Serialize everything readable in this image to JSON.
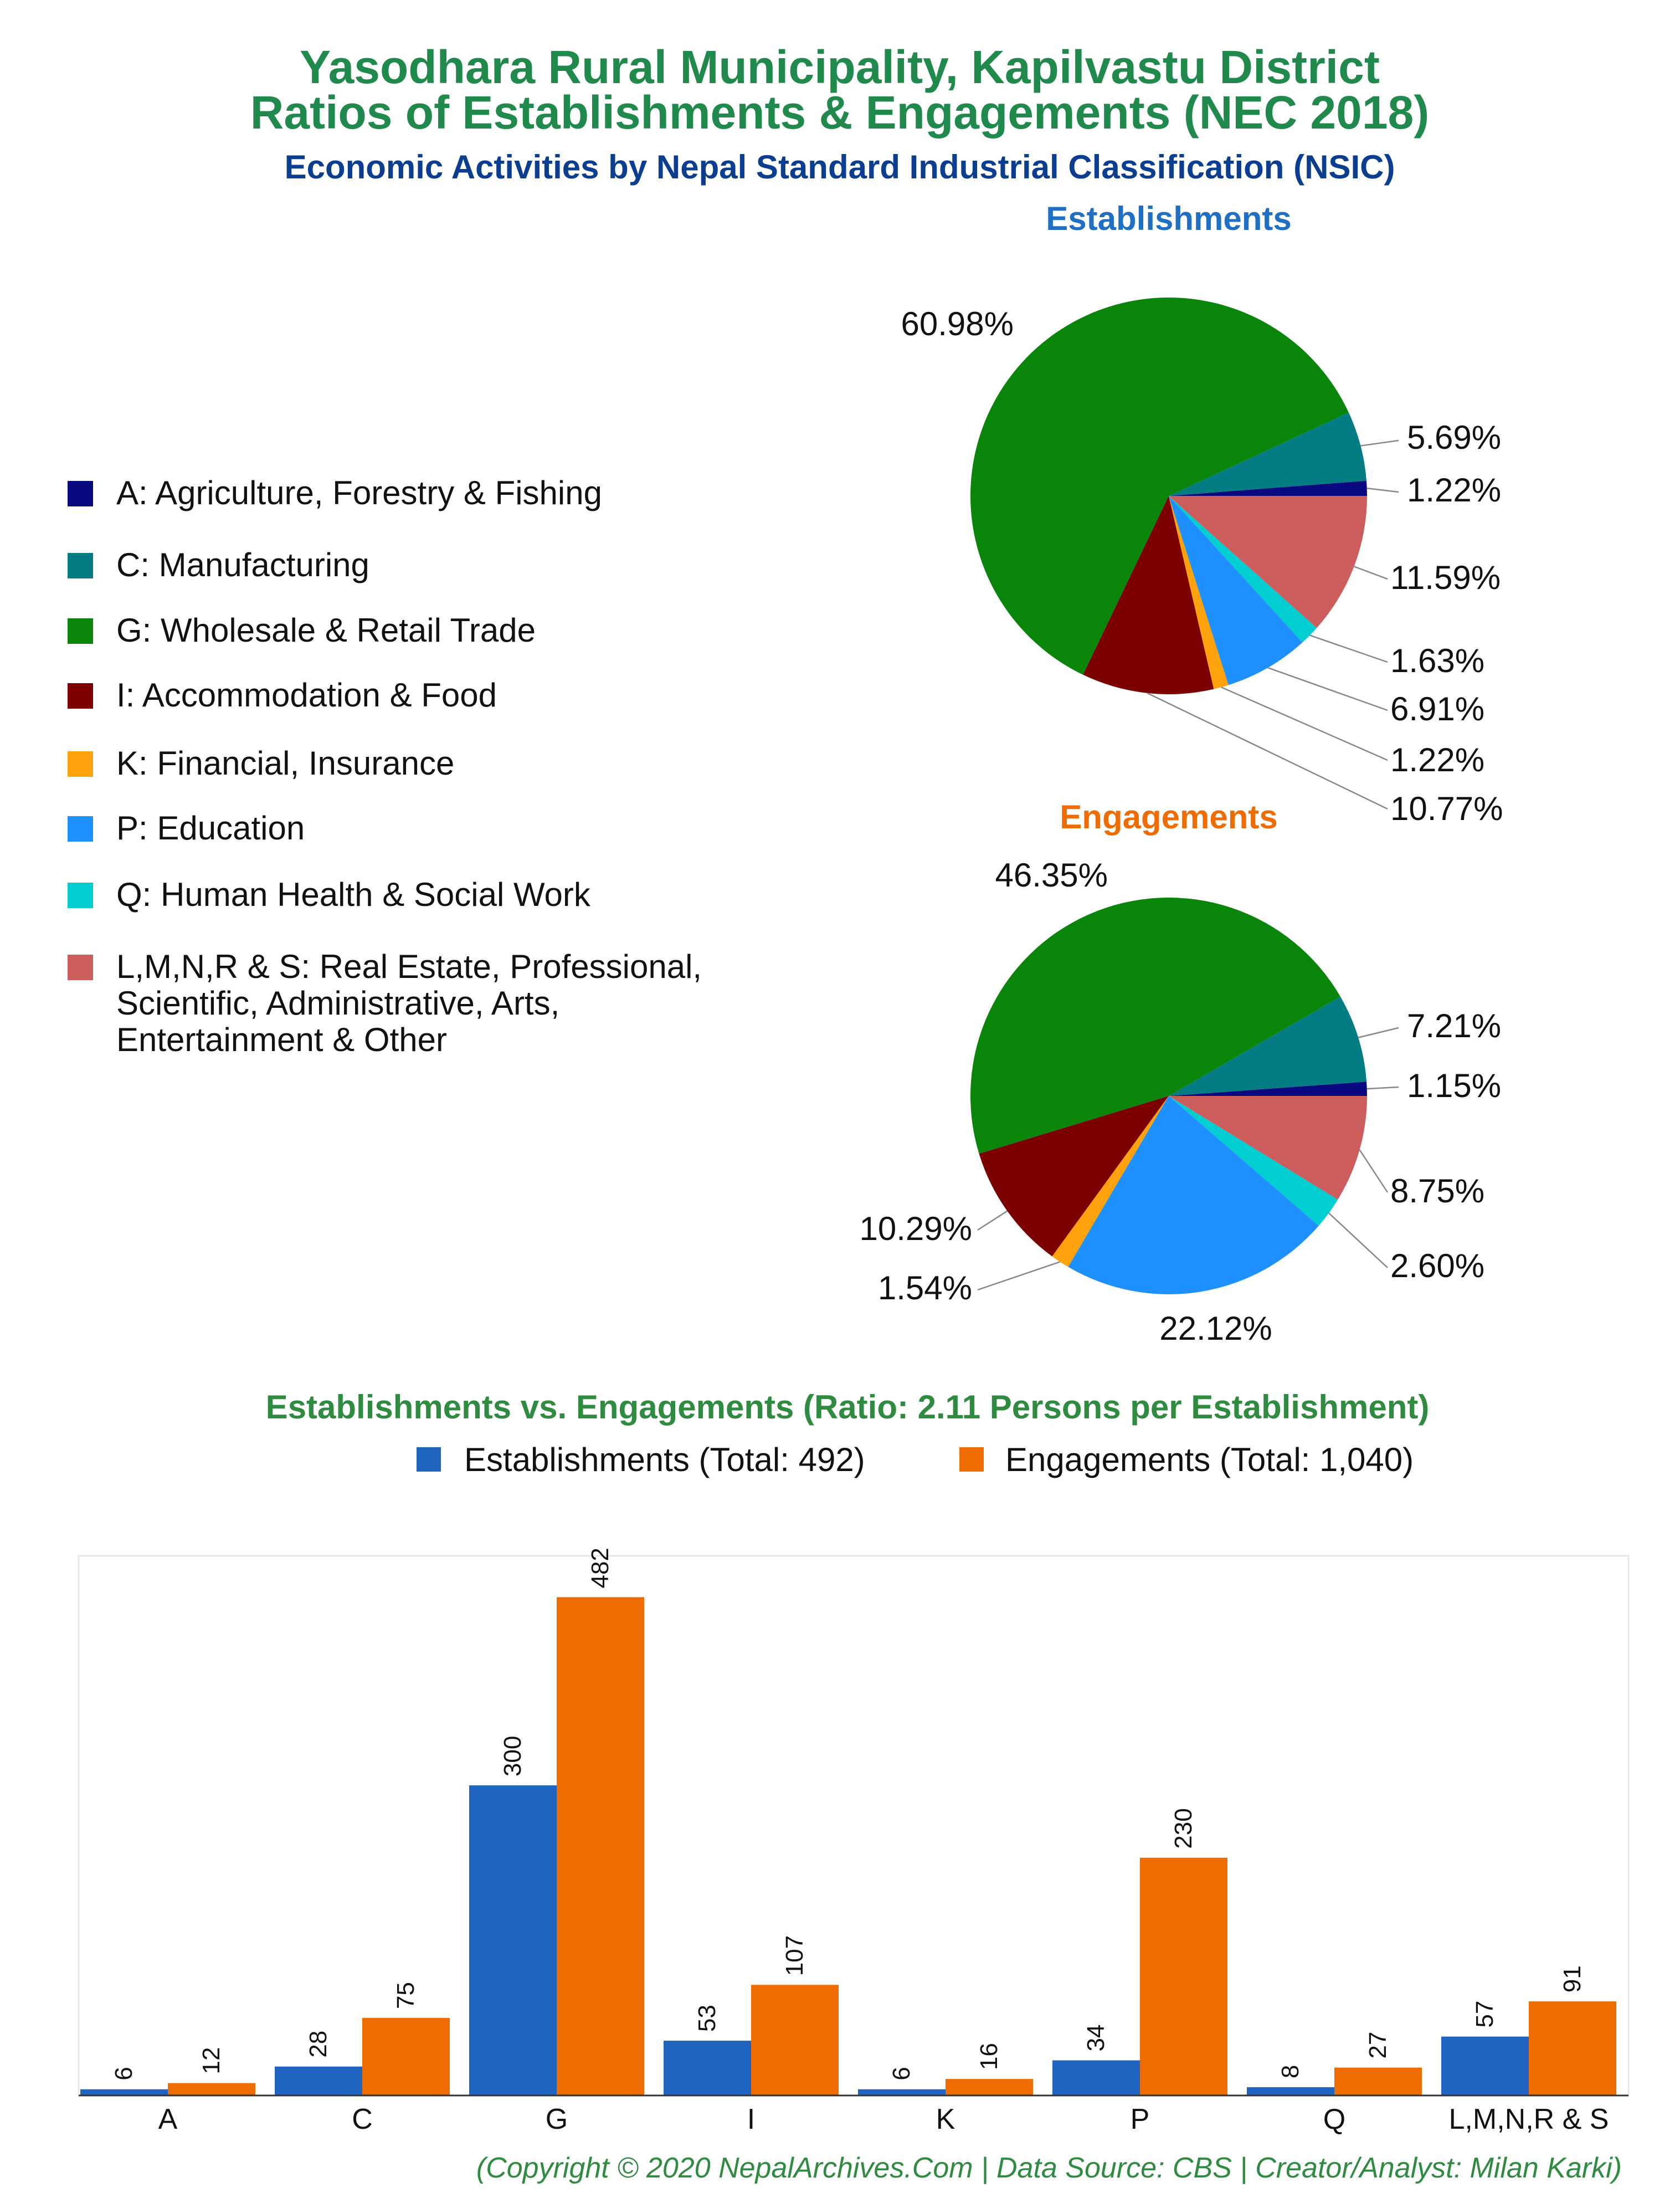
{
  "header": {
    "title_line1": "Yasodhara Rural Municipality, Kapilvastu District",
    "title_line2": "Ratios of Establishments & Engagements (NEC 2018)",
    "subtitle": "Economic Activities by Nepal Standard Industrial Classification (NSIC)"
  },
  "legend": {
    "items": [
      {
        "label": "A: Agriculture, Forestry & Fishing",
        "color": "#0a0a80"
      },
      {
        "label": "C: Manufacturing",
        "color": "#047c84"
      },
      {
        "label": "G: Wholesale & Retail Trade",
        "color": "#098609"
      },
      {
        "label": "I: Accommodation & Food",
        "color": "#7c0000"
      },
      {
        "label": "K: Financial, Insurance",
        "color": "#ffa20c"
      },
      {
        "label": "P: Education",
        "color": "#1e90ff"
      },
      {
        "label": "Q: Human Health & Social Work",
        "color": "#00ced1"
      },
      {
        "label_lines": [
          "L,M,N,R & S: Real Estate, Professional,",
          "Scientific, Administrative, Arts,",
          "Entertainment & Other"
        ],
        "color": "#cd5c5c"
      }
    ]
  },
  "footer": {
    "text": "(Copyright © 2020 NepalArchives.Com | Data Source: CBS | Creator/Analyst: Milan Karki)"
  },
  "chart_data": [
    {
      "type": "pie",
      "title": "Establishments",
      "labels": [
        "A",
        "C",
        "G",
        "I",
        "K",
        "P",
        "Q",
        "L,M,N,R & S"
      ],
      "values": [
        1.22,
        5.69,
        60.98,
        10.77,
        1.22,
        6.91,
        1.63,
        11.59
      ],
      "value_labels": [
        "1.22%",
        "5.69%",
        "60.98%",
        "10.77%",
        "1.22%",
        "6.91%",
        "1.63%",
        "11.59%"
      ],
      "colors": [
        "#0a0a80",
        "#047c84",
        "#098609",
        "#7c0000",
        "#ffa20c",
        "#1e90ff",
        "#00ced1",
        "#cd5c5c"
      ]
    },
    {
      "type": "pie",
      "title": "Engagements",
      "labels": [
        "A",
        "C",
        "G",
        "I",
        "K",
        "P",
        "Q",
        "L,M,N,R & S"
      ],
      "values": [
        1.15,
        7.21,
        46.35,
        10.29,
        1.54,
        22.12,
        2.6,
        8.75
      ],
      "value_labels": [
        "1.15%",
        "7.21%",
        "46.35%",
        "10.29%",
        "1.54%",
        "22.12%",
        "2.60%",
        "8.75%"
      ],
      "colors": [
        "#0a0a80",
        "#047c84",
        "#098609",
        "#7c0000",
        "#ffa20c",
        "#1e90ff",
        "#00ced1",
        "#cd5c5c"
      ]
    },
    {
      "type": "bar",
      "title": "Establishments vs. Engagements (Ratio: 2.11 Persons per Establishment)",
      "categories": [
        "A",
        "C",
        "G",
        "I",
        "K",
        "P",
        "Q",
        "L,M,N,R & S"
      ],
      "series": [
        {
          "name": "Establishments (Total: 492)",
          "color": "#1e64c0",
          "values": [
            6,
            28,
            300,
            53,
            6,
            34,
            8,
            57
          ]
        },
        {
          "name": "Engagements (Total: 1,040)",
          "color": "#ee6c00",
          "values": [
            12,
            75,
            482,
            107,
            16,
            230,
            27,
            91
          ]
        }
      ],
      "ylim": [
        0,
        500
      ],
      "legend_position": "top-right",
      "grid": false
    }
  ]
}
